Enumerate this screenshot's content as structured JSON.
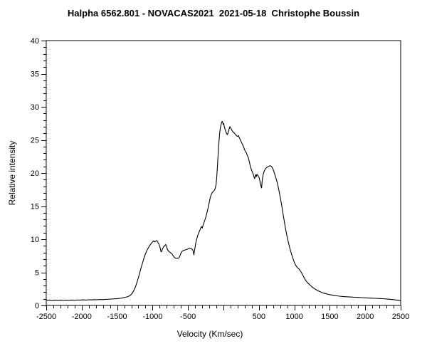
{
  "chart_data": {
    "type": "line",
    "title": "Halpha 6562.801 - NOVACAS2021  2021-05-18  Christophe Boussin",
    "xlabel": "Velocity (Km/sec)",
    "ylabel": "Relative intensity",
    "xlim": [
      -2500,
      2500
    ],
    "ylim": [
      0,
      40
    ],
    "grid": false,
    "legend": "none",
    "background_color": "#ffffff",
    "line_color": "#000000",
    "x_major_ticks": [
      {
        "value": -2500,
        "label": "-2500"
      },
      {
        "value": -2000,
        "label": "-2000"
      },
      {
        "value": -1500,
        "label": "-1500"
      },
      {
        "value": -1000,
        "label": "-1000"
      },
      {
        "value": -500,
        "label": "-500"
      },
      {
        "value": 0,
        "label": ""
      },
      {
        "value": 500,
        "label": "500"
      },
      {
        "value": 1000,
        "label": "1000"
      },
      {
        "value": 1500,
        "label": "1500"
      },
      {
        "value": 2000,
        "label": "2000"
      },
      {
        "value": 2500,
        "label": "2500"
      }
    ],
    "x_minor_tick_interval": 100,
    "y_major_ticks": [
      {
        "value": 0,
        "label": "0"
      },
      {
        "value": 5,
        "label": "5"
      },
      {
        "value": 10,
        "label": "10"
      },
      {
        "value": 15,
        "label": "15"
      },
      {
        "value": 20,
        "label": "20"
      },
      {
        "value": 25,
        "label": "25"
      },
      {
        "value": 30,
        "label": "30"
      },
      {
        "value": 35,
        "label": "35"
      },
      {
        "value": 40,
        "label": "40"
      }
    ],
    "y_minor_tick_interval": 1,
    "series": [
      {
        "points": [
          [
            -2500,
            0.75
          ],
          [
            -2460,
            0.8
          ],
          [
            -2420,
            0.73
          ],
          [
            -2380,
            0.79
          ],
          [
            -2340,
            0.74
          ],
          [
            -2300,
            0.78
          ],
          [
            -2260,
            0.75
          ],
          [
            -2220,
            0.8
          ],
          [
            -2180,
            0.77
          ],
          [
            -2140,
            0.82
          ],
          [
            -2100,
            0.78
          ],
          [
            -2060,
            0.83
          ],
          [
            -2020,
            0.8
          ],
          [
            -1980,
            0.85
          ],
          [
            -1940,
            0.82
          ],
          [
            -1900,
            0.86
          ],
          [
            -1860,
            0.84
          ],
          [
            -1820,
            0.88
          ],
          [
            -1780,
            0.86
          ],
          [
            -1740,
            0.9
          ],
          [
            -1700,
            0.88
          ],
          [
            -1660,
            0.92
          ],
          [
            -1620,
            0.94
          ],
          [
            -1580,
            0.97
          ],
          [
            -1540,
            1.0
          ],
          [
            -1500,
            1.03
          ],
          [
            -1460,
            1.08
          ],
          [
            -1420,
            1.15
          ],
          [
            -1380,
            1.25
          ],
          [
            -1350,
            1.33
          ],
          [
            -1320,
            1.48
          ],
          [
            -1300,
            1.68
          ],
          [
            -1280,
            1.95
          ],
          [
            -1260,
            2.35
          ],
          [
            -1240,
            2.85
          ],
          [
            -1220,
            3.5
          ],
          [
            -1200,
            4.2
          ],
          [
            -1180,
            5.0
          ],
          [
            -1160,
            5.8
          ],
          [
            -1140,
            6.5
          ],
          [
            -1120,
            7.2
          ],
          [
            -1100,
            7.8
          ],
          [
            -1080,
            8.3
          ],
          [
            -1060,
            8.7
          ],
          [
            -1040,
            9.05
          ],
          [
            -1020,
            9.35
          ],
          [
            -1000,
            9.6
          ],
          [
            -985,
            9.75
          ],
          [
            -970,
            9.6
          ],
          [
            -955,
            9.72
          ],
          [
            -940,
            9.8
          ],
          [
            -925,
            9.55
          ],
          [
            -910,
            9.25
          ],
          [
            -895,
            8.75
          ],
          [
            -882,
            8.15
          ],
          [
            -872,
            8.1
          ],
          [
            -860,
            8.55
          ],
          [
            -845,
            8.85
          ],
          [
            -830,
            9.0
          ],
          [
            -815,
            9.2
          ],
          [
            -803,
            8.9
          ],
          [
            -790,
            8.45
          ],
          [
            -775,
            8.2
          ],
          [
            -760,
            8.05
          ],
          [
            -745,
            7.95
          ],
          [
            -730,
            7.85
          ],
          [
            -715,
            7.6
          ],
          [
            -700,
            7.35
          ],
          [
            -685,
            7.2
          ],
          [
            -670,
            7.1
          ],
          [
            -655,
            7.15
          ],
          [
            -640,
            7.1
          ],
          [
            -625,
            7.25
          ],
          [
            -610,
            7.6
          ],
          [
            -595,
            8.0
          ],
          [
            -580,
            8.2
          ],
          [
            -565,
            8.3
          ],
          [
            -550,
            8.35
          ],
          [
            -535,
            8.4
          ],
          [
            -520,
            8.45
          ],
          [
            -505,
            8.5
          ],
          [
            -490,
            8.6
          ],
          [
            -475,
            8.65
          ],
          [
            -460,
            8.6
          ],
          [
            -445,
            8.5
          ],
          [
            -430,
            8.3
          ],
          [
            -418,
            7.65
          ],
          [
            -408,
            8.3
          ],
          [
            -398,
            9.0
          ],
          [
            -388,
            9.6
          ],
          [
            -378,
            10.0
          ],
          [
            -365,
            10.5
          ],
          [
            -350,
            10.9
          ],
          [
            -335,
            11.3
          ],
          [
            -320,
            11.7
          ],
          [
            -308,
            11.9
          ],
          [
            -298,
            11.7
          ],
          [
            -288,
            12.1
          ],
          [
            -275,
            12.5
          ],
          [
            -262,
            12.9
          ],
          [
            -250,
            13.3
          ],
          [
            -238,
            13.8
          ],
          [
            -226,
            14.3
          ],
          [
            -214,
            14.9
          ],
          [
            -202,
            15.5
          ],
          [
            -190,
            16.1
          ],
          [
            -178,
            16.6
          ],
          [
            -166,
            16.9
          ],
          [
            -155,
            17.1
          ],
          [
            -145,
            17.2
          ],
          [
            -135,
            17.3
          ],
          [
            -125,
            17.45
          ],
          [
            -115,
            17.7
          ],
          [
            -105,
            18.2
          ],
          [
            -98,
            18.9
          ],
          [
            -92,
            19.8
          ],
          [
            -86,
            20.8
          ],
          [
            -80,
            21.9
          ],
          [
            -74,
            23.0
          ],
          [
            -68,
            24.0
          ],
          [
            -62,
            24.9
          ],
          [
            -55,
            25.8
          ],
          [
            -48,
            26.5
          ],
          [
            -40,
            27.0
          ],
          [
            -32,
            27.4
          ],
          [
            -24,
            27.7
          ],
          [
            -16,
            27.8
          ],
          [
            -10,
            27.6
          ],
          [
            -4,
            27.35
          ],
          [
            2,
            27.5
          ],
          [
            10,
            27.1
          ],
          [
            20,
            26.7
          ],
          [
            32,
            26.3
          ],
          [
            44,
            25.95
          ],
          [
            55,
            25.8
          ],
          [
            65,
            26.1
          ],
          [
            78,
            26.6
          ],
          [
            90,
            27.0
          ],
          [
            100,
            26.85
          ],
          [
            112,
            26.6
          ],
          [
            125,
            26.35
          ],
          [
            140,
            26.15
          ],
          [
            155,
            26.0
          ],
          [
            170,
            25.85
          ],
          [
            185,
            25.6
          ],
          [
            200,
            25.55
          ],
          [
            212,
            25.65
          ],
          [
            225,
            25.3
          ],
          [
            240,
            24.95
          ],
          [
            255,
            24.6
          ],
          [
            270,
            24.3
          ],
          [
            285,
            23.9
          ],
          [
            298,
            23.5
          ],
          [
            310,
            23.25
          ],
          [
            322,
            23.05
          ],
          [
            335,
            22.7
          ],
          [
            350,
            22.3
          ],
          [
            365,
            21.7
          ],
          [
            380,
            21.0
          ],
          [
            395,
            20.5
          ],
          [
            410,
            20.1
          ],
          [
            422,
            19.75
          ],
          [
            432,
            19.4
          ],
          [
            440,
            19.15
          ],
          [
            448,
            19.5
          ],
          [
            456,
            19.75
          ],
          [
            464,
            19.45
          ],
          [
            472,
            19.8
          ],
          [
            482,
            19.7
          ],
          [
            492,
            19.5
          ],
          [
            502,
            19.35
          ],
          [
            512,
            18.9
          ],
          [
            522,
            18.4
          ],
          [
            532,
            17.9
          ],
          [
            538,
            17.75
          ],
          [
            545,
            18.7
          ],
          [
            552,
            19.3
          ],
          [
            562,
            19.85
          ],
          [
            575,
            20.3
          ],
          [
            590,
            20.6
          ],
          [
            605,
            20.8
          ],
          [
            625,
            20.95
          ],
          [
            645,
            21.05
          ],
          [
            662,
            21.1
          ],
          [
            678,
            21.0
          ],
          [
            692,
            20.75
          ],
          [
            706,
            20.4
          ],
          [
            720,
            19.95
          ],
          [
            734,
            19.45
          ],
          [
            748,
            18.95
          ],
          [
            762,
            18.4
          ],
          [
            776,
            17.7
          ],
          [
            790,
            16.95
          ],
          [
            805,
            16.1
          ],
          [
            820,
            15.2
          ],
          [
            840,
            13.85
          ],
          [
            860,
            12.55
          ],
          [
            880,
            11.35
          ],
          [
            900,
            10.3
          ],
          [
            920,
            9.35
          ],
          [
            940,
            8.5
          ],
          [
            960,
            7.75
          ],
          [
            980,
            7.1
          ],
          [
            1000,
            6.5
          ],
          [
            1020,
            6.05
          ],
          [
            1040,
            5.75
          ],
          [
            1060,
            5.55
          ],
          [
            1080,
            5.3
          ],
          [
            1100,
            4.95
          ],
          [
            1120,
            4.55
          ],
          [
            1140,
            4.15
          ],
          [
            1160,
            3.8
          ],
          [
            1180,
            3.5
          ],
          [
            1200,
            3.3
          ],
          [
            1225,
            3.05
          ],
          [
            1250,
            2.8
          ],
          [
            1275,
            2.6
          ],
          [
            1300,
            2.42
          ],
          [
            1330,
            2.25
          ],
          [
            1360,
            2.1
          ],
          [
            1390,
            1.95
          ],
          [
            1420,
            1.85
          ],
          [
            1450,
            1.75
          ],
          [
            1480,
            1.67
          ],
          [
            1510,
            1.6
          ],
          [
            1540,
            1.55
          ],
          [
            1570,
            1.5
          ],
          [
            1600,
            1.45
          ],
          [
            1640,
            1.4
          ],
          [
            1680,
            1.36
          ],
          [
            1720,
            1.32
          ],
          [
            1760,
            1.3
          ],
          [
            1800,
            1.27
          ],
          [
            1850,
            1.24
          ],
          [
            1900,
            1.21
          ],
          [
            1950,
            1.18
          ],
          [
            2000,
            1.15
          ],
          [
            2050,
            1.12
          ],
          [
            2100,
            1.1
          ],
          [
            2150,
            1.07
          ],
          [
            2200,
            1.04
          ],
          [
            2250,
            1.02
          ],
          [
            2300,
            0.98
          ],
          [
            2350,
            0.93
          ],
          [
            2400,
            0.88
          ],
          [
            2450,
            0.8
          ],
          [
            2500,
            0.72
          ]
        ]
      }
    ]
  }
}
